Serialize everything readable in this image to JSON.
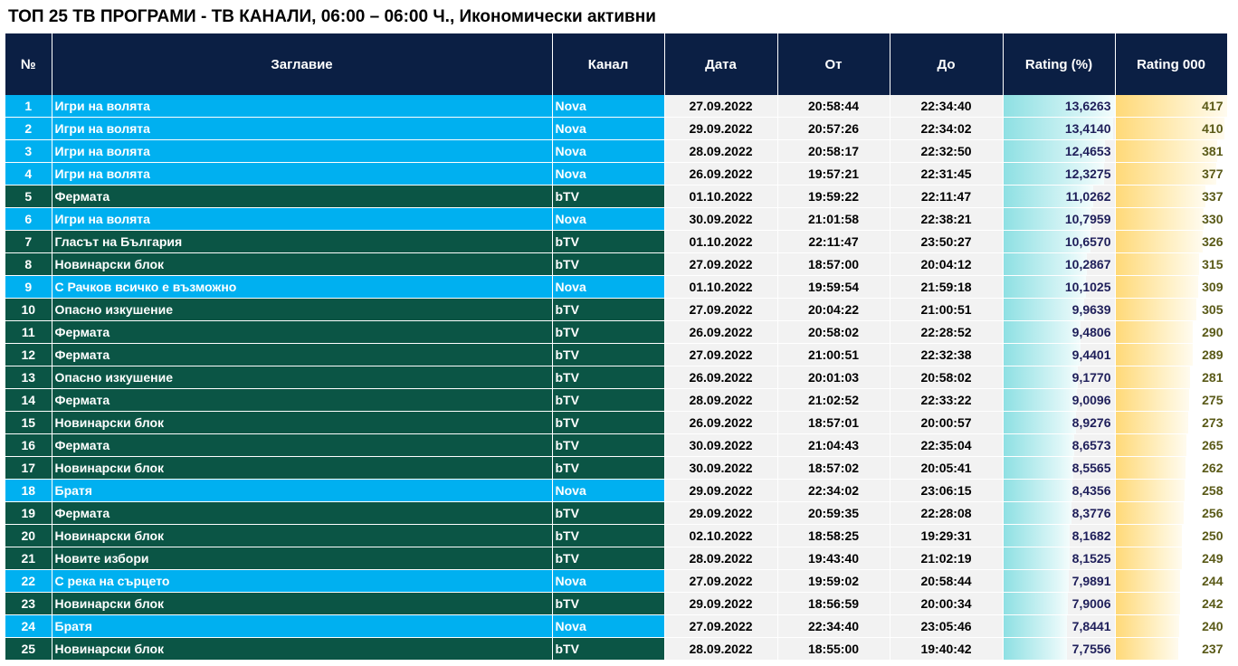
{
  "title": "ТОП 25 ТВ ПРОГРАМИ - ТВ КАНАЛИ, 06:00 – 06:00 Ч., Икономически активни",
  "colors": {
    "header_bg": "#0b1f44",
    "nova_bg": "#00b0f0",
    "btv_bg": "#0b5545",
    "rating_bar": "#8ee0e3",
    "rating000_bar": "#ffd978"
  },
  "columns": {
    "num": "№",
    "title": "Заглавие",
    "channel": "Канал",
    "date": "Дата",
    "from": "От",
    "to": "До",
    "rating": "Rating (%)",
    "rating000": "Rating 000"
  },
  "rows": [
    {
      "num": "1",
      "title": "Игри на волята",
      "channel": "Nova",
      "date": "27.09.2022",
      "from": "20:58:44",
      "to": "22:34:40",
      "rating": "13,6263",
      "rating000": "417"
    },
    {
      "num": "2",
      "title": "Игри на волята",
      "channel": "Nova",
      "date": "29.09.2022",
      "from": "20:57:26",
      "to": "22:34:02",
      "rating": "13,4140",
      "rating000": "410"
    },
    {
      "num": "3",
      "title": "Игри на волята",
      "channel": "Nova",
      "date": "28.09.2022",
      "from": "20:58:17",
      "to": "22:32:50",
      "rating": "12,4653",
      "rating000": "381"
    },
    {
      "num": "4",
      "title": "Игри на волята",
      "channel": "Nova",
      "date": "26.09.2022",
      "from": "19:57:21",
      "to": "22:31:45",
      "rating": "12,3275",
      "rating000": "377"
    },
    {
      "num": "5",
      "title": "Фермата",
      "channel": "bTV",
      "date": "01.10.2022",
      "from": "19:59:22",
      "to": "22:11:47",
      "rating": "11,0262",
      "rating000": "337"
    },
    {
      "num": "6",
      "title": "Игри на волята",
      "channel": "Nova",
      "date": "30.09.2022",
      "from": "21:01:58",
      "to": "22:38:21",
      "rating": "10,7959",
      "rating000": "330"
    },
    {
      "num": "7",
      "title": "Гласът на България",
      "channel": "bTV",
      "date": "01.10.2022",
      "from": "22:11:47",
      "to": "23:50:27",
      "rating": "10,6570",
      "rating000": "326"
    },
    {
      "num": "8",
      "title": "Новинарски блок",
      "channel": "bTV",
      "date": "27.09.2022",
      "from": "18:57:00",
      "to": "20:04:12",
      "rating": "10,2867",
      "rating000": "315"
    },
    {
      "num": "9",
      "title": "С Рачков всичко е възможно",
      "channel": "Nova",
      "date": "01.10.2022",
      "from": "19:59:54",
      "to": "21:59:18",
      "rating": "10,1025",
      "rating000": "309"
    },
    {
      "num": "10",
      "title": "Опасно изкушение",
      "channel": "bTV",
      "date": "27.09.2022",
      "from": "20:04:22",
      "to": "21:00:51",
      "rating": "9,9639",
      "rating000": "305"
    },
    {
      "num": "11",
      "title": "Фермата",
      "channel": "bTV",
      "date": "26.09.2022",
      "from": "20:58:02",
      "to": "22:28:52",
      "rating": "9,4806",
      "rating000": "290"
    },
    {
      "num": "12",
      "title": "Фермата",
      "channel": "bTV",
      "date": "27.09.2022",
      "from": "21:00:51",
      "to": "22:32:38",
      "rating": "9,4401",
      "rating000": "289"
    },
    {
      "num": "13",
      "title": "Опасно изкушение",
      "channel": "bTV",
      "date": "26.09.2022",
      "from": "20:01:03",
      "to": "20:58:02",
      "rating": "9,1770",
      "rating000": "281"
    },
    {
      "num": "14",
      "title": "Фермата",
      "channel": "bTV",
      "date": "28.09.2022",
      "from": "21:02:52",
      "to": "22:33:22",
      "rating": "9,0096",
      "rating000": "275"
    },
    {
      "num": "15",
      "title": "Новинарски блок",
      "channel": "bTV",
      "date": "26.09.2022",
      "from": "18:57:01",
      "to": "20:00:57",
      "rating": "8,9276",
      "rating000": "273"
    },
    {
      "num": "16",
      "title": "Фермата",
      "channel": "bTV",
      "date": "30.09.2022",
      "from": "21:04:43",
      "to": "22:35:04",
      "rating": "8,6573",
      "rating000": "265"
    },
    {
      "num": "17",
      "title": "Новинарски блок",
      "channel": "bTV",
      "date": "30.09.2022",
      "from": "18:57:02",
      "to": "20:05:41",
      "rating": "8,5565",
      "rating000": "262"
    },
    {
      "num": "18",
      "title": "Братя",
      "channel": "Nova",
      "date": "29.09.2022",
      "from": "22:34:02",
      "to": "23:06:15",
      "rating": "8,4356",
      "rating000": "258"
    },
    {
      "num": "19",
      "title": "Фермата",
      "channel": "bTV",
      "date": "29.09.2022",
      "from": "20:59:35",
      "to": "22:28:08",
      "rating": "8,3776",
      "rating000": "256"
    },
    {
      "num": "20",
      "title": "Новинарски блок",
      "channel": "bTV",
      "date": "02.10.2022",
      "from": "18:58:25",
      "to": "19:29:31",
      "rating": "8,1682",
      "rating000": "250"
    },
    {
      "num": "21",
      "title": "Новите избори",
      "channel": "bTV",
      "date": "28.09.2022",
      "from": "19:43:40",
      "to": "21:02:19",
      "rating": "8,1525",
      "rating000": "249"
    },
    {
      "num": "22",
      "title": "С река на сърцето",
      "channel": "Nova",
      "date": "27.09.2022",
      "from": "19:59:02",
      "to": "20:58:44",
      "rating": "7,9891",
      "rating000": "244"
    },
    {
      "num": "23",
      "title": "Новинарски блок",
      "channel": "bTV",
      "date": "29.09.2022",
      "from": "18:56:59",
      "to": "20:00:34",
      "rating": "7,9006",
      "rating000": "242"
    },
    {
      "num": "24",
      "title": "Братя",
      "channel": "Nova",
      "date": "27.09.2022",
      "from": "22:34:40",
      "to": "23:05:46",
      "rating": "7,8441",
      "rating000": "240"
    },
    {
      "num": "25",
      "title": "Новинарски блок",
      "channel": "bTV",
      "date": "28.09.2022",
      "from": "18:55:00",
      "to": "19:40:42",
      "rating": "7,7556",
      "rating000": "237"
    }
  ]
}
